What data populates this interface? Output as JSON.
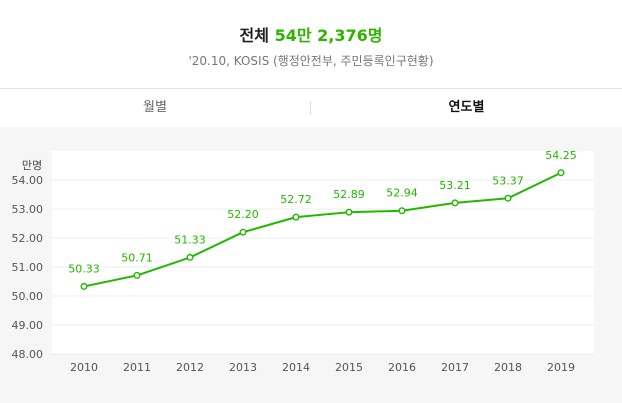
{
  "header": {
    "title_prefix": "전체",
    "title_value": "54만 2,376명",
    "source": "'20.10, KOSIS (행정안전부, 주민등록인구현황)"
  },
  "tabs": [
    {
      "label": "월별",
      "active": false
    },
    {
      "label": "연도별",
      "active": true
    }
  ],
  "colors": {
    "accent": "#2db400",
    "line": "#21b800"
  },
  "chart_data": {
    "type": "line",
    "ylabel": "만명",
    "ylim": [
      48.0,
      55.0
    ],
    "yticks": [
      "54.00",
      "53.00",
      "52.00",
      "51.00",
      "50.00",
      "49.00",
      "48.00"
    ],
    "categories": [
      "2010",
      "2011",
      "2012",
      "2013",
      "2014",
      "2015",
      "2016",
      "2017",
      "2018",
      "2019"
    ],
    "values": [
      50.33,
      50.71,
      51.33,
      52.2,
      52.72,
      52.89,
      52.94,
      53.21,
      53.37,
      54.25
    ],
    "value_labels": [
      "50.33",
      "50.71",
      "51.33",
      "52.20",
      "52.72",
      "52.89",
      "52.94",
      "53.21",
      "53.37",
      "54.25"
    ],
    "grid": true
  }
}
